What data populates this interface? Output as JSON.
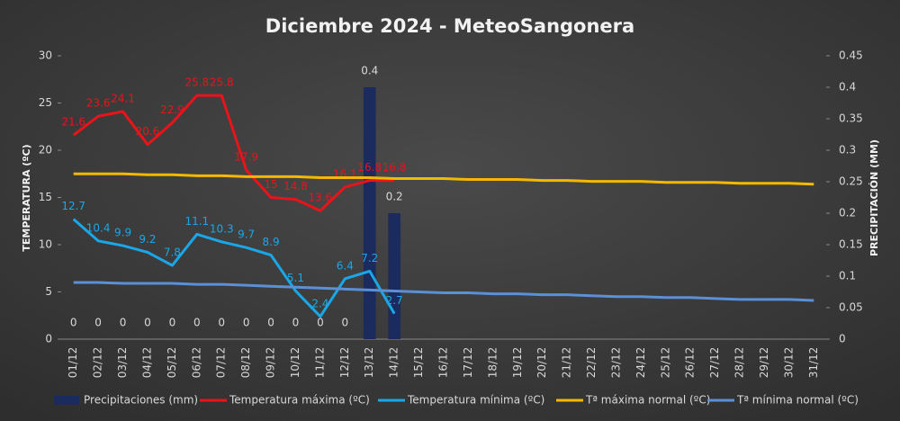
{
  "chart_data": {
    "type": "combo",
    "title": "Diciembre 2024 - MeteoSangonera",
    "y_label": "TEMPERATURA (ºC)",
    "y2_label": "PRECIPITACIÓN (MM)",
    "categories": [
      "01/12",
      "02/12",
      "03/12",
      "04/12",
      "05/12",
      "06/12",
      "07/12",
      "08/12",
      "09/12",
      "10/12",
      "11/12",
      "12/12",
      "13/12",
      "14/12",
      "15/12",
      "16/12",
      "17/12",
      "18/12",
      "19/12",
      "20/12",
      "21/12",
      "22/12",
      "23/12",
      "24/12",
      "25/12",
      "26/12",
      "27/12",
      "28/12",
      "29/12",
      "30/12",
      "31/12"
    ],
    "ylim": [
      0,
      30
    ],
    "yticks": [
      0,
      5,
      10,
      15,
      20,
      25,
      30
    ],
    "y2lim": [
      0,
      0.45
    ],
    "y2ticks": [
      0,
      0.05,
      0.1,
      0.15,
      0.2,
      0.25,
      0.3,
      0.35,
      0.4,
      0.45
    ],
    "series": [
      {
        "name": "Precipitaciones (mm)",
        "type": "bar",
        "axis": "y2",
        "color": "#1c2b5e",
        "label_color": "#d9d9d9",
        "values": [
          0,
          0,
          0,
          0,
          0,
          0,
          0,
          0,
          0,
          0,
          0,
          0,
          0.4,
          0.2,
          null,
          null,
          null,
          null,
          null,
          null,
          null,
          null,
          null,
          null,
          null,
          null,
          null,
          null,
          null,
          null,
          null
        ]
      },
      {
        "name": "Temperatura máxima (ºC)",
        "type": "line",
        "color": "#e8141a",
        "label_color": "#e8141a",
        "values": [
          21.6,
          23.6,
          24.1,
          20.6,
          22.9,
          25.8,
          25.8,
          17.9,
          15,
          14.8,
          13.6,
          16.1,
          16.8,
          16.8,
          null,
          null,
          null,
          null,
          null,
          null,
          null,
          null,
          null,
          null,
          null,
          null,
          null,
          null,
          null,
          null,
          null
        ]
      },
      {
        "name": "Temperatura mínima (ºC)",
        "type": "line",
        "color": "#1aa7e8",
        "label_color": "#1aa7e8",
        "values": [
          12.7,
          10.4,
          9.9,
          9.2,
          7.8,
          11.1,
          10.3,
          9.7,
          8.9,
          5.1,
          2.4,
          6.4,
          7.2,
          2.7,
          null,
          null,
          null,
          null,
          null,
          null,
          null,
          null,
          null,
          null,
          null,
          null,
          null,
          null,
          null,
          null,
          null
        ]
      },
      {
        "name": "Tª máxima normal (ºC)",
        "type": "line",
        "color": "#f5b800",
        "values": [
          17.5,
          17.5,
          17.5,
          17.4,
          17.4,
          17.3,
          17.3,
          17.2,
          17.2,
          17.2,
          17.1,
          17.1,
          17.1,
          17.0,
          17.0,
          17.0,
          16.9,
          16.9,
          16.9,
          16.8,
          16.8,
          16.7,
          16.7,
          16.7,
          16.6,
          16.6,
          16.6,
          16.5,
          16.5,
          16.5,
          16.4
        ]
      },
      {
        "name": "Tª mínima normal (ºC)",
        "type": "line",
        "color": "#5b8fd6",
        "values": [
          6.0,
          6.0,
          5.9,
          5.9,
          5.9,
          5.8,
          5.8,
          5.7,
          5.6,
          5.5,
          5.4,
          5.3,
          5.2,
          5.1,
          5.0,
          4.9,
          4.9,
          4.8,
          4.8,
          4.7,
          4.7,
          4.6,
          4.5,
          4.5,
          4.4,
          4.4,
          4.3,
          4.2,
          4.2,
          4.2,
          4.1
        ]
      }
    ]
  }
}
